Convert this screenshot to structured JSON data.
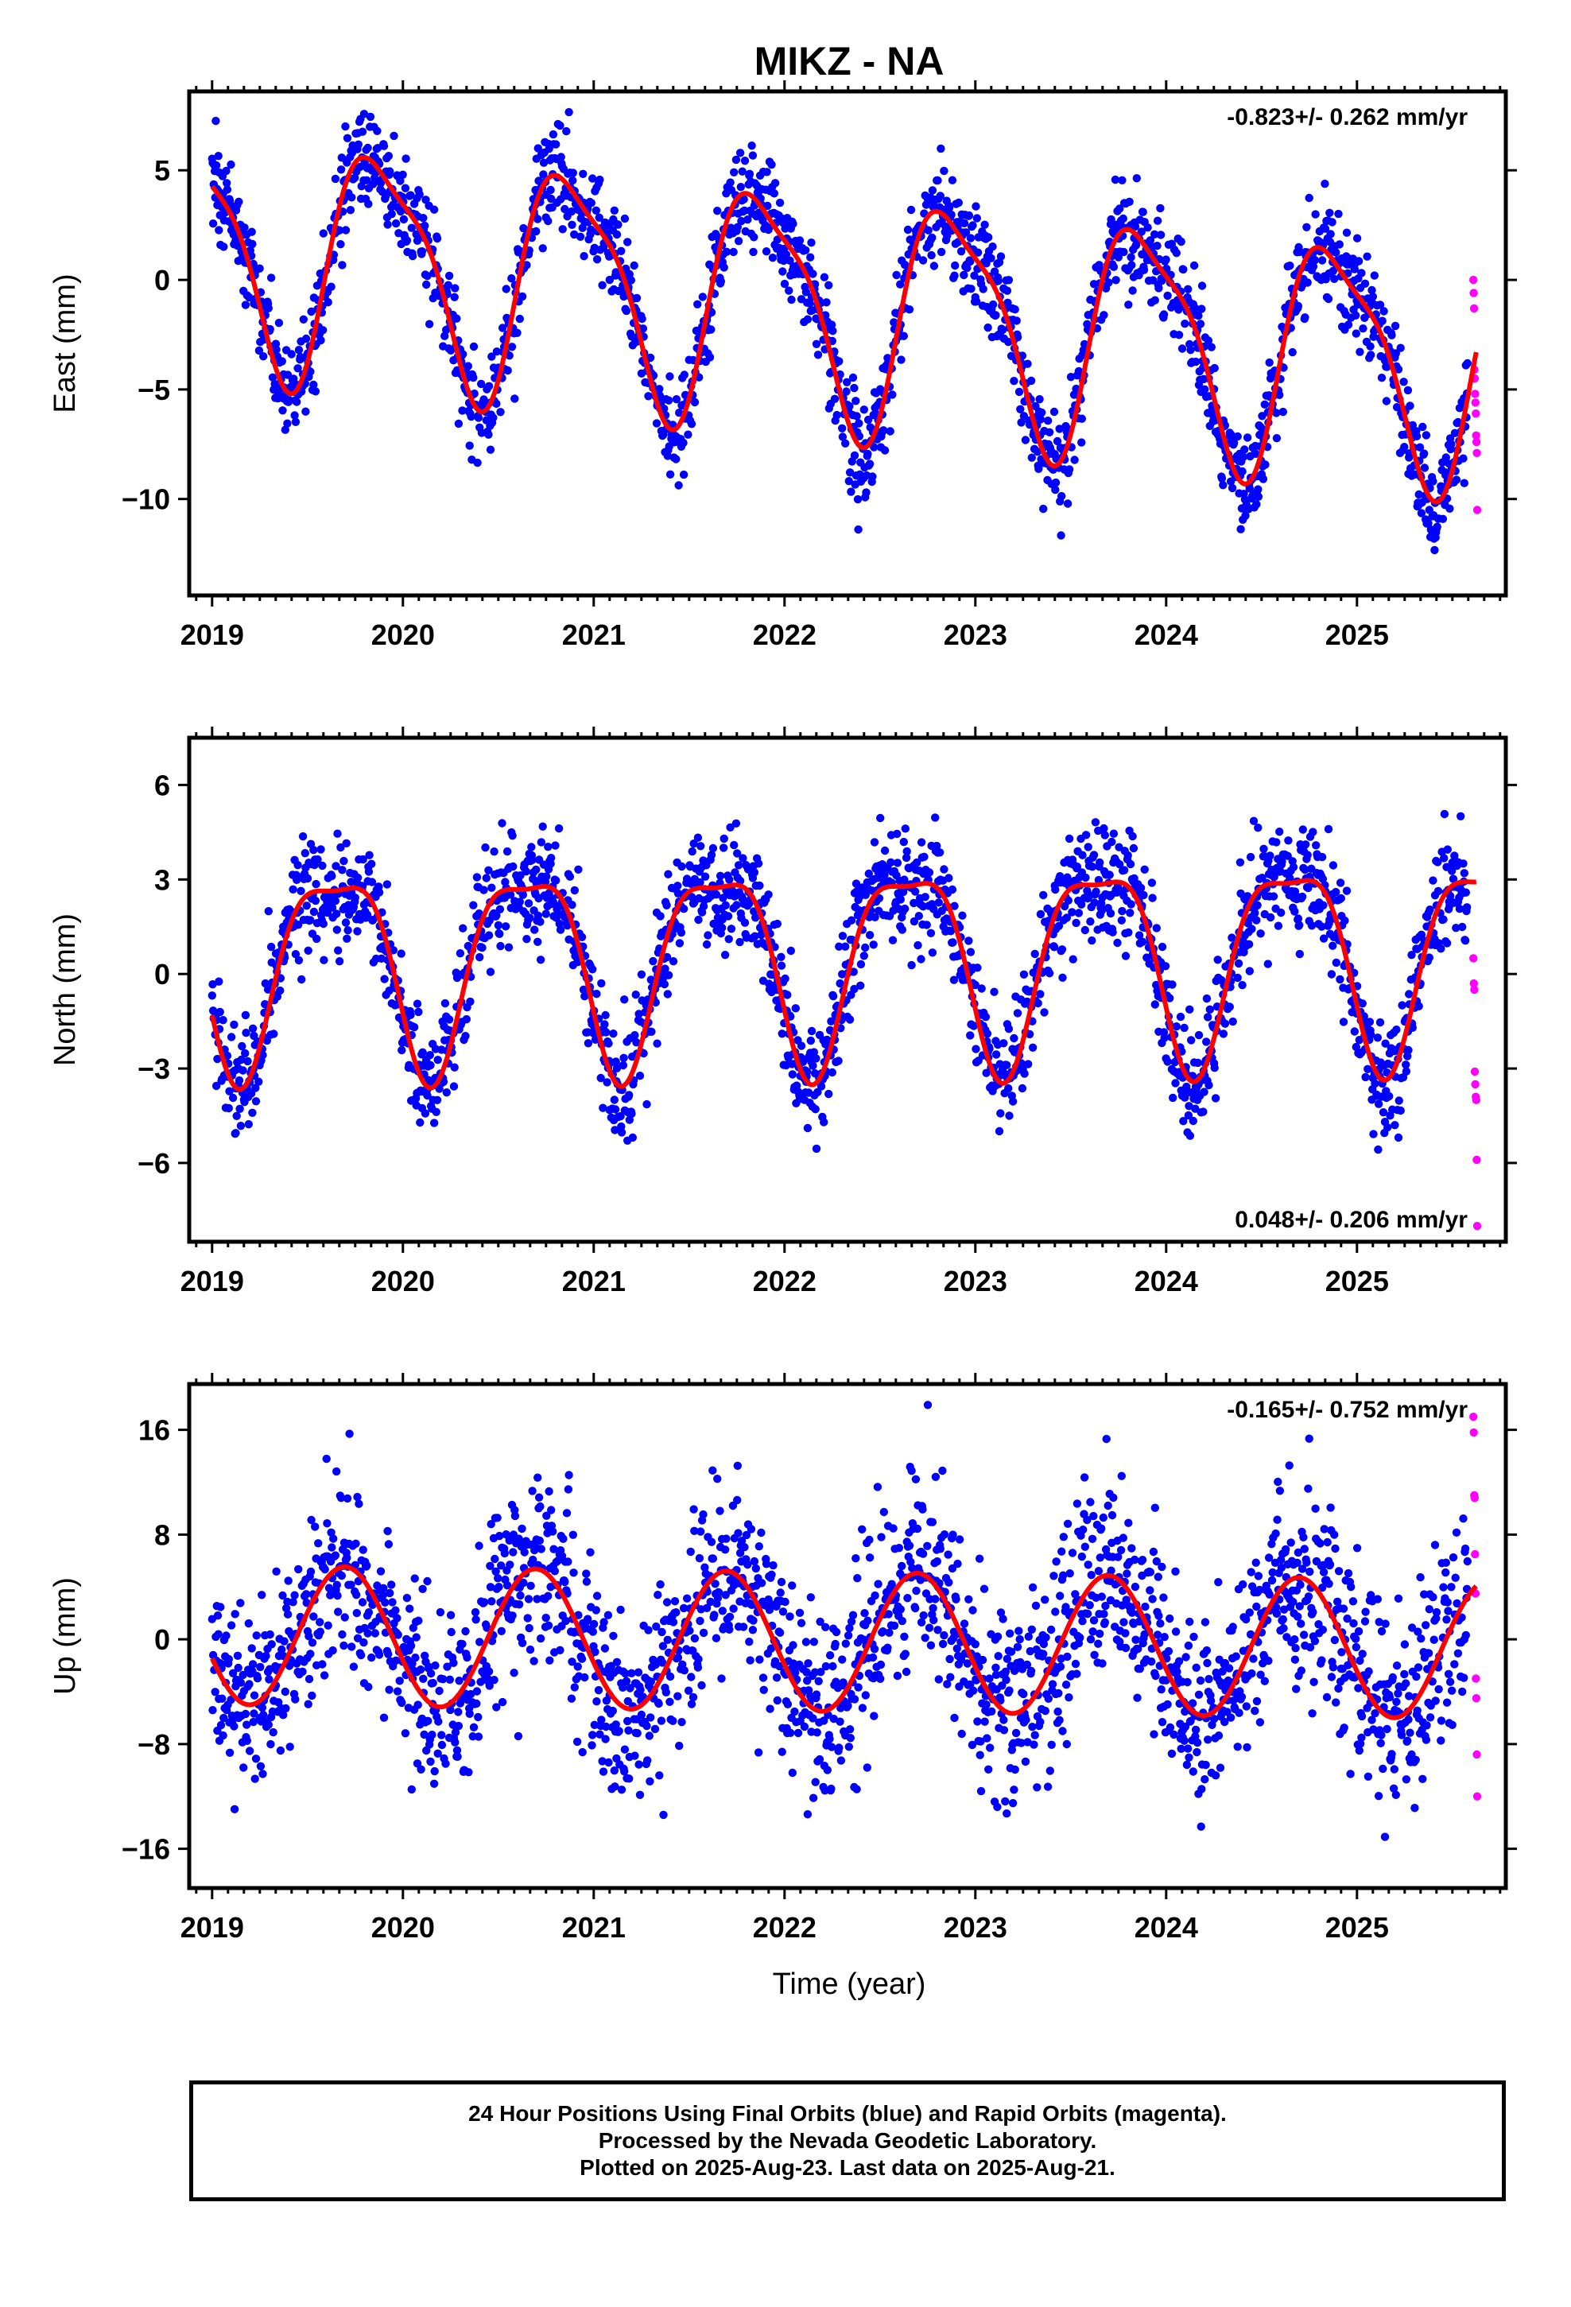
{
  "title": "MIKZ - NA",
  "xlabel": "Time (year)",
  "footer": {
    "line1": "24 Hour Positions Using Final Orbits (blue) and Rapid Orbits (magenta).",
    "line2": "Processed by the Nevada Geodetic Laboratory.",
    "line3": "Plotted on 2025-Aug-23. Last data on 2025-Aug-21."
  },
  "colors": {
    "final": "#0000ff",
    "rapid": "#ff00ff",
    "fit": "#ff0000",
    "axis": "#000000"
  },
  "chart_data": [
    {
      "type": "scatter",
      "ylabel": "East (mm)",
      "rate": "-0.823+/- 0.262 mm/yr",
      "rate_position": "top-right",
      "xlim": [
        2018.88,
        2025.78
      ],
      "ylim": [
        -14.4,
        8.6
      ],
      "yticks": [
        -10,
        -5,
        0,
        5
      ],
      "ytick_labels": [
        "−10",
        "−5",
        "0",
        "5"
      ],
      "xticks": [
        2019,
        2020,
        2021,
        2022,
        2023,
        2024,
        2025
      ],
      "model": {
        "t0": 2022.3,
        "offset": -1.25,
        "trend": -0.823,
        "annual_cos": 3.8,
        "annual_sin": -3.5,
        "semi_cos": -1.0,
        "semi_sin": 0.9
      },
      "scatter_sd": 1.15,
      "final_orbits_range": [
        2019.0,
        2025.58
      ],
      "rapid_orbits_range": [
        2025.6,
        2025.64
      ],
      "rapid_values": [
        0.0,
        -0.6,
        -1.3,
        -4.1,
        -4.5,
        -5.2,
        -5.6,
        -6.1,
        -7.1,
        -7.4,
        -7.9,
        -10.5
      ]
    },
    {
      "type": "scatter",
      "ylabel": "North (mm)",
      "rate": "0.048+/- 0.206 mm/yr",
      "rate_position": "bottom-right",
      "xlim": [
        2018.88,
        2025.78
      ],
      "ylim": [
        -8.5,
        7.5
      ],
      "yticks": [
        -6,
        -3,
        0,
        3,
        6
      ],
      "ytick_labels": [
        "−6",
        "−3",
        "0",
        "3",
        "6"
      ],
      "xticks": [
        2019,
        2020,
        2021,
        2022,
        2023,
        2024,
        2025
      ],
      "model": {
        "t0": 2022.3,
        "offset": 0.55,
        "trend": 0.048,
        "annual_cos": -1.9,
        "annual_sin": -2.5,
        "semi_cos": 0.2,
        "semi_sin": -0.9
      },
      "scatter_sd": 0.9,
      "final_orbits_range": [
        2019.0,
        2025.58
      ],
      "rapid_orbits_range": [
        2025.6,
        2025.64
      ],
      "rapid_values": [
        0.5,
        -0.3,
        -0.5,
        -3.1,
        -3.5,
        -3.9,
        -4.0,
        -5.9,
        -8.0
      ]
    },
    {
      "type": "scatter",
      "ylabel": "Up (mm)",
      "rate": "-0.165+/- 0.752 mm/yr",
      "rate_position": "top-right",
      "xlim": [
        2018.88,
        2025.78
      ],
      "ylim": [
        -19.0,
        19.5
      ],
      "yticks": [
        -16,
        -8,
        0,
        8,
        16
      ],
      "ytick_labels": [
        "−16",
        "−8",
        "0",
        "8",
        "16"
      ],
      "xticks": [
        2019,
        2020,
        2021,
        2022,
        2023,
        2024,
        2025
      ],
      "model": {
        "t0": 2022.3,
        "offset": -0.2,
        "trend": -0.165,
        "annual_cos": -1.8,
        "annual_sin": -5.0,
        "semi_cos": 0.0,
        "semi_sin": 0.0
      },
      "scatter_sd": 3.6,
      "final_orbits_range": [
        2019.0,
        2025.58
      ],
      "rapid_orbits_range": [
        2025.6,
        2025.64
      ],
      "rapid_values": [
        17.0,
        15.8,
        11.0,
        10.8,
        6.5,
        3.5,
        -3.0,
        -4.5,
        -8.8,
        -12.0
      ]
    }
  ]
}
